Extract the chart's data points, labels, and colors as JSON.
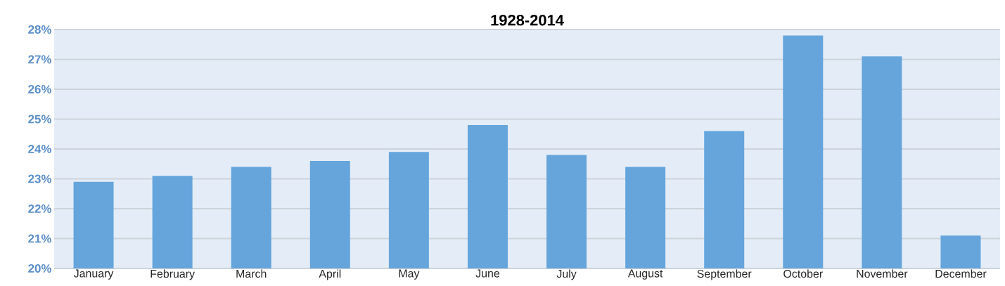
{
  "chart_data": {
    "type": "bar",
    "title": "1928-2014",
    "categories": [
      "January",
      "February",
      "March",
      "April",
      "May",
      "June",
      "July",
      "August",
      "September",
      "October",
      "November",
      "December"
    ],
    "values": [
      22.9,
      23.1,
      23.4,
      23.6,
      23.9,
      24.8,
      23.8,
      23.4,
      24.6,
      27.8,
      27.1,
      21.1
    ],
    "color": "#65a5dc",
    "ylim": [
      20,
      28
    ],
    "yticks": [
      {
        "value": 20,
        "label": "20%"
      },
      {
        "value": 21,
        "label": "21%"
      },
      {
        "value": 22,
        "label": "22%"
      },
      {
        "value": 23,
        "label": "23%"
      },
      {
        "value": 24,
        "label": "24%"
      },
      {
        "value": 25,
        "label": "25%"
      },
      {
        "value": 26,
        "label": "26%"
      },
      {
        "value": 27,
        "label": "27%"
      },
      {
        "value": 28,
        "label": "28%"
      }
    ],
    "grid": "y"
  }
}
